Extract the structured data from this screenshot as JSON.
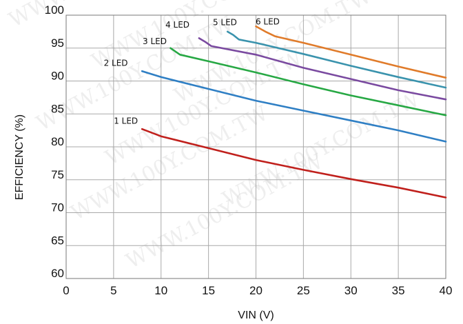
{
  "chart_data": {
    "type": "line",
    "xlabel": "VIN (V)",
    "ylabel": "EFFICIENCY (%)",
    "xlim": [
      0,
      40
    ],
    "ylim": [
      60,
      100
    ],
    "xticks": [
      0,
      5,
      10,
      15,
      20,
      25,
      30,
      35,
      40
    ],
    "yticks": [
      60,
      65,
      70,
      75,
      80,
      85,
      90,
      95,
      100
    ],
    "grid": true,
    "watermark": "WWW.100Y.COM.TW",
    "series": [
      {
        "name": "1 LED",
        "color": "#c0201c",
        "x": [
          8,
          10,
          15,
          20,
          25,
          30,
          35,
          40
        ],
        "y": [
          82.7,
          81.6,
          79.8,
          78.0,
          76.5,
          75.1,
          73.8,
          72.3
        ]
      },
      {
        "name": "2 LED",
        "color": "#2f7fc4",
        "x": [
          8,
          10,
          15,
          20,
          25,
          30,
          35,
          40
        ],
        "y": [
          91.5,
          90.6,
          88.8,
          87.0,
          85.5,
          84.0,
          82.5,
          80.8
        ]
      },
      {
        "name": "3 LED",
        "color": "#27a844",
        "x": [
          11,
          12,
          15,
          20,
          25,
          30,
          35,
          40
        ],
        "y": [
          95.0,
          94.0,
          93.0,
          91.3,
          89.5,
          87.8,
          86.3,
          84.8
        ]
      },
      {
        "name": "4 LED",
        "color": "#7a4aa0",
        "x": [
          14,
          14.6,
          15.3,
          20,
          25,
          30,
          35,
          40
        ],
        "y": [
          96.5,
          96.0,
          95.3,
          94.0,
          92.0,
          90.3,
          88.6,
          87.2
        ]
      },
      {
        "name": "5 LED",
        "color": "#3a93ad",
        "x": [
          17,
          17.6,
          18.2,
          20,
          25,
          30,
          35,
          40
        ],
        "y": [
          97.5,
          97.0,
          96.3,
          95.8,
          94.1,
          92.3,
          90.6,
          89.0
        ]
      },
      {
        "name": "6 LED",
        "color": "#e07b2a",
        "x": [
          20,
          21,
          22,
          25,
          30,
          35,
          40
        ],
        "y": [
          98.3,
          97.5,
          96.8,
          95.8,
          94.0,
          92.2,
          90.5
        ]
      }
    ]
  }
}
